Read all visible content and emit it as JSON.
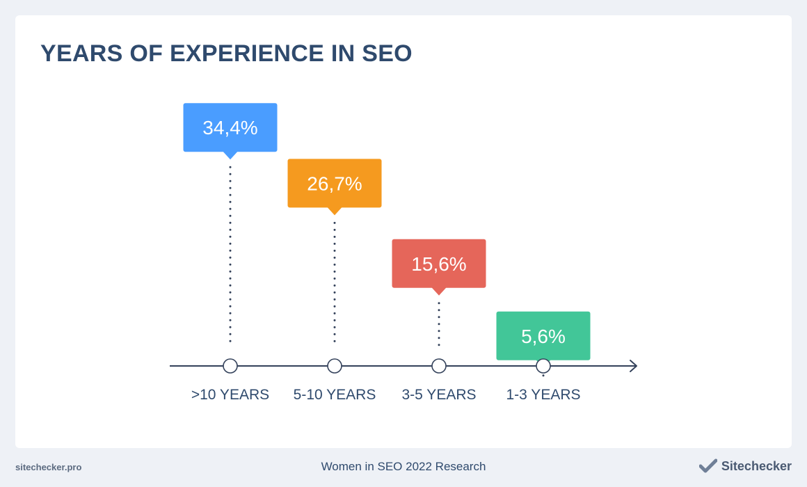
{
  "title": "YEARS OF EXPERIENCE IN SEO",
  "footer": {
    "site": "sitechecker.pro",
    "caption": "Women in SEO 2022 Research",
    "brand": "Sitechecker"
  },
  "colors": {
    "title": "#2f4a6d",
    "axis": "#33415a",
    "dots": "#33415a",
    "series": [
      "#4a9dff",
      "#f59a1f",
      "#e5665a",
      "#42c698"
    ]
  },
  "chart_data": {
    "type": "bar",
    "categories": [
      ">10 YEARS",
      "5-10 YEARS",
      "3-5 YEARS",
      "1-3 YEARS"
    ],
    "values": [
      34.4,
      26.7,
      15.6,
      5.6
    ],
    "labels": [
      "34,4%",
      "26,7%",
      "15,6%",
      "5,6%"
    ],
    "title": "YEARS OF EXPERIENCE IN SEO",
    "xlabel": "",
    "ylabel": "",
    "ylim": [
      0,
      35
    ],
    "grid": false
  }
}
